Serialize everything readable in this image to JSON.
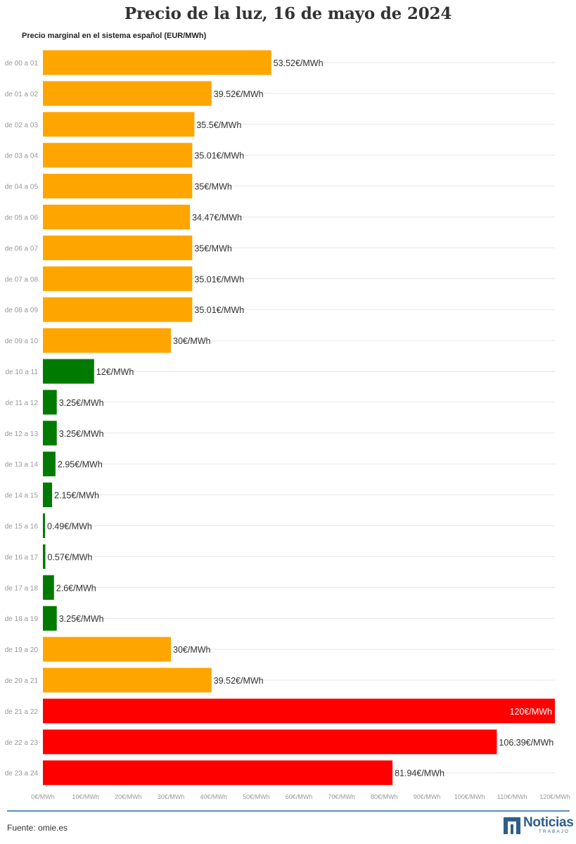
{
  "title": "Precio de la luz, 16 de mayo de 2024",
  "subtitle": "Precio marginal en el sistema español (EUR/MWh)",
  "source": "Fuente: omie.es",
  "logo": {
    "word": "Noticias",
    "sub": "TRABAJO"
  },
  "colors": {
    "low": "#007a00",
    "mid": "#ffa500",
    "high": "#ff0000",
    "gridline": "#e6e6e6",
    "category_text": "#999999",
    "tick_text": "#999999",
    "value_text": "#333333",
    "value_text_inside": "#ffffff",
    "footer_rule": "#5a8fb5",
    "logo": "#2d5f8a"
  },
  "chart_data": {
    "type": "bar",
    "orientation": "horizontal",
    "title": "Precio de la luz, 16 de mayo de 2024",
    "subtitle": "Precio marginal en el sistema español (EUR/MWh)",
    "xlim": [
      0,
      120
    ],
    "xticks": [
      0,
      10,
      20,
      30,
      40,
      50,
      60,
      70,
      80,
      90,
      100,
      110,
      120
    ],
    "xtick_labels": [
      "0€/MWh",
      "10€/MWh",
      "20€/MWh",
      "30€/MWh",
      "40€/MWh",
      "50€/MWh",
      "60€/MWh",
      "70€/MWh",
      "80€/MWh",
      "90€/MWh",
      "100€/MWh",
      "110€/MWh",
      "120€/MWh"
    ],
    "grid": true,
    "categories": [
      "de 00 a 01",
      "de 01 a 02",
      "de 02 a 03",
      "de 03 a 04",
      "de 04 a 05",
      "de 05 a 06",
      "de 06 a 07",
      "de 07 a 08",
      "de 08 a 09",
      "de 09 a 10",
      "de 10 a 11",
      "de 11 a 12",
      "de 12 a 13",
      "de 13 a 14",
      "de 14 a 15",
      "de 15 a 16",
      "de 16 a 17",
      "de 17 a 18",
      "de 18 a 19",
      "de 19 a 20",
      "de 20 a 21",
      "de 21 a 22",
      "de 22 a 23",
      "de 23 a 24"
    ],
    "values": [
      53.52,
      39.52,
      35.5,
      35.01,
      35,
      34.47,
      35,
      35.01,
      35.01,
      30,
      12,
      3.25,
      3.25,
      2.95,
      2.15,
      0.49,
      0.57,
      2.6,
      3.25,
      30,
      39.52,
      120,
      106.39,
      81.94
    ],
    "value_labels": [
      "53.52€/MWh",
      "39.52€/MWh",
      "35.5€/MWh",
      "35.01€/MWh",
      "35€/MWh",
      "34.47€/MWh",
      "35€/MWh",
      "35.01€/MWh",
      "35.01€/MWh",
      "30€/MWh",
      "12€/MWh",
      "3.25€/MWh",
      "3.25€/MWh",
      "2.95€/MWh",
      "2.15€/MWh",
      "0.49€/MWh",
      "0.57€/MWh",
      "2.6€/MWh",
      "3.25€/MWh",
      "30€/MWh",
      "39.52€/MWh",
      "120€/MWh",
      "106.39€/MWh",
      "81.94€/MWh"
    ],
    "bar_colors": [
      "mid",
      "mid",
      "mid",
      "mid",
      "mid",
      "mid",
      "mid",
      "mid",
      "mid",
      "mid",
      "low",
      "low",
      "low",
      "low",
      "low",
      "low",
      "low",
      "low",
      "low",
      "mid",
      "mid",
      "high",
      "high",
      "high"
    ]
  }
}
